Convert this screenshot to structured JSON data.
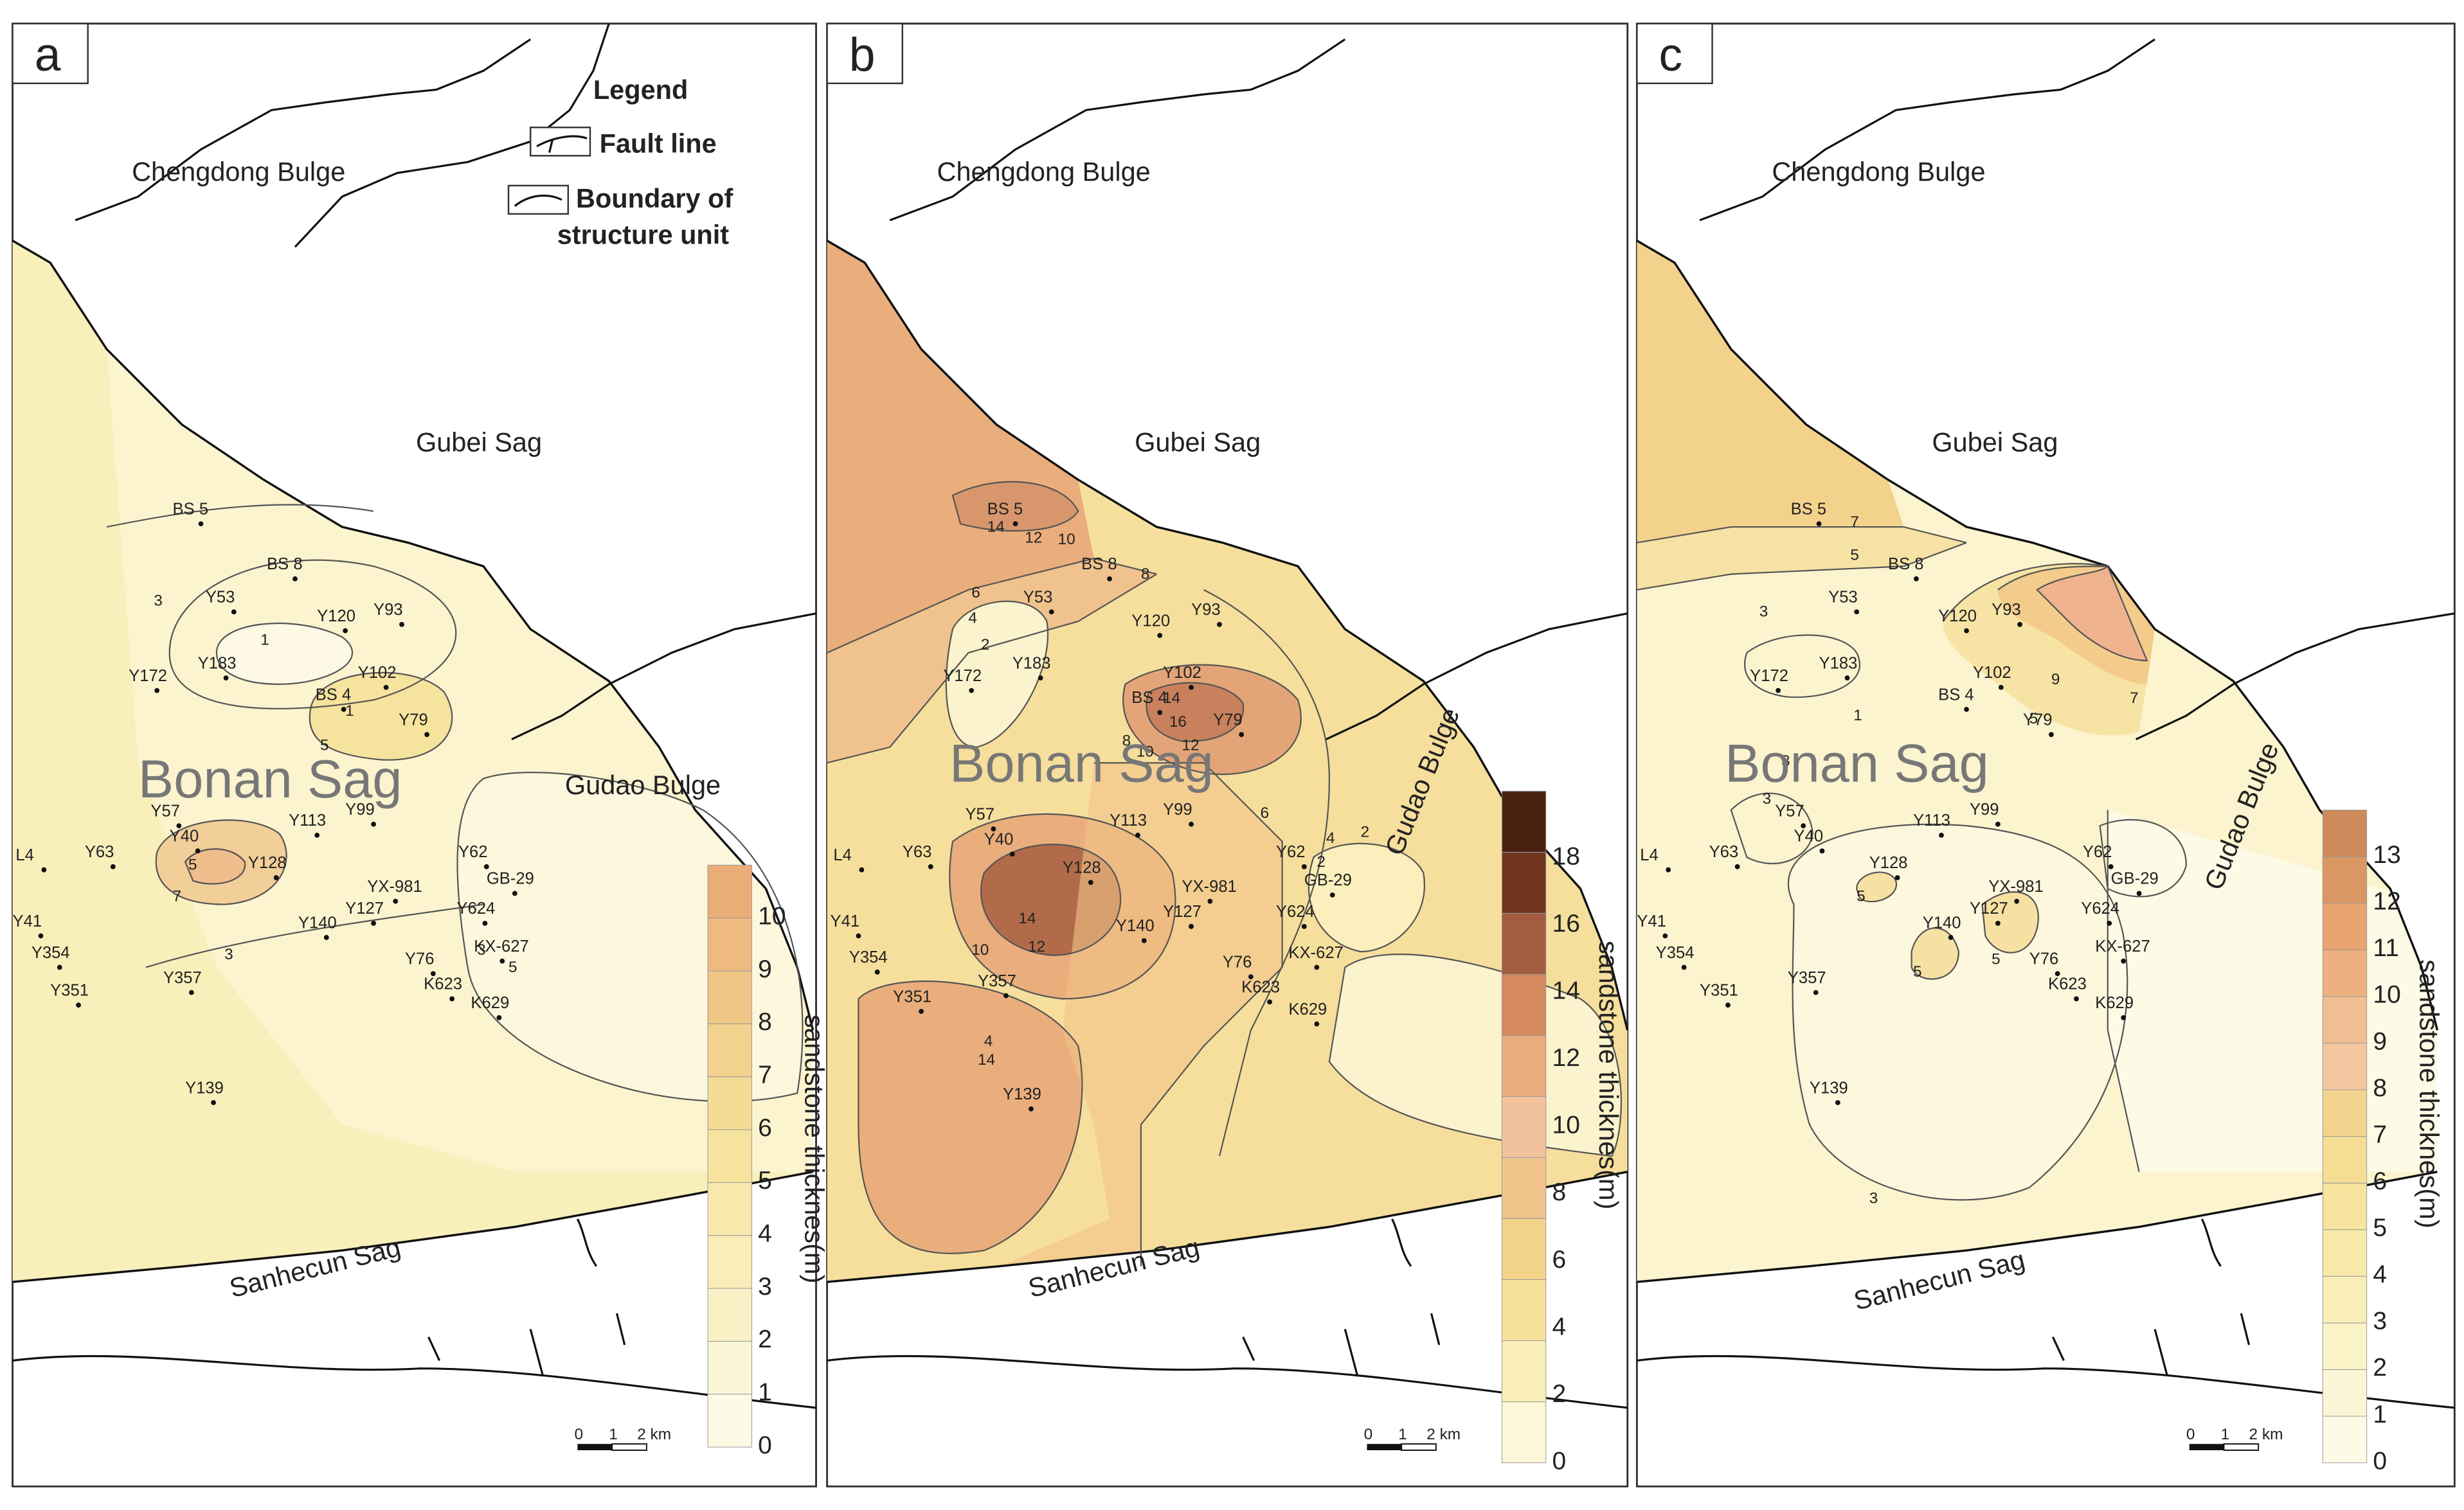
{
  "legend": {
    "title": "Legend",
    "fault": "Fault line",
    "boundary_l1": "Boundary of",
    "boundary_l2": "structure unit"
  },
  "scale": {
    "t0": "0",
    "t1": "1",
    "t2": "2 km"
  },
  "colorbar_label": "sandstone thicknes(m)",
  "regions": {
    "chengdong": "Chengdong Bulge",
    "gubei": "Gubei Sag",
    "bonan": "Bonan Sag",
    "gudao": "Gudao Bulge",
    "sanhecun": "Sanhecun Sag"
  },
  "panels": [
    {
      "letter": "a",
      "gudao_rotated": false,
      "colorbar": {
        "ticks": [
          "0",
          "1",
          "2",
          "3",
          "4",
          "5",
          "6",
          "7",
          "8",
          "9",
          "10"
        ],
        "colors": [
          "#fdfbe6",
          "#fbf7d6",
          "#faf2c6",
          "#f9edb8",
          "#f8e8ab",
          "#f6e39e",
          "#f4dc95",
          "#f2d28c",
          "#f0c686",
          "#eeba80",
          "#ebad77"
        ]
      },
      "contours": [
        "3",
        "1",
        "1",
        "5",
        "5",
        "7",
        "3",
        "5",
        "3"
      ],
      "wells": [
        "BS 5",
        "BS 8",
        "Y53",
        "Y120",
        "Y93",
        "Y172",
        "Y183",
        "Y102",
        "BS 4",
        "Y79",
        "Y57",
        "Y40",
        "L4",
        "Y63",
        "Y128",
        "Y113",
        "Y99",
        "Y62",
        "GB-29",
        "YX-981",
        "Y127",
        "Y140",
        "Y624",
        "Y41",
        "Y354",
        "Y76",
        "KX-627",
        "Y351",
        "Y357",
        "K623",
        "K629",
        "Y139"
      ]
    },
    {
      "letter": "b",
      "gudao_rotated": true,
      "colorbar": {
        "ticks": [
          "0",
          "2",
          "4",
          "6",
          "8",
          "10",
          "12",
          "14",
          "16",
          "18"
        ],
        "colors": [
          "#fbf7d8",
          "#faefb8",
          "#f7e29a",
          "#f3d28a",
          "#f0c38a",
          "#f1c29b",
          "#e8ac7d",
          "#d4895f",
          "#a35c3f",
          "#70341f",
          "#4a200f"
        ]
      },
      "contours": [
        "14",
        "12",
        "10",
        "8",
        "6",
        "4",
        "2",
        "16",
        "14",
        "12",
        "10",
        "8",
        "6",
        "4",
        "2",
        "12",
        "14",
        "10",
        "14",
        "4",
        "2"
      ],
      "wells": [
        "BS 5",
        "BS 8",
        "Y53",
        "Y120",
        "Y93",
        "Y172",
        "Y183",
        "Y102",
        "BS 4",
        "Y79",
        "Y57",
        "Y40",
        "L4",
        "Y63",
        "Y128",
        "Y113",
        "Y99",
        "Y62",
        "GB-29",
        "YX-981",
        "Y127",
        "Y140",
        "Y624",
        "Y41",
        "Y354",
        "Y76",
        "KX-627",
        "Y351",
        "Y357",
        "K623",
        "K629",
        "Y139"
      ]
    },
    {
      "letter": "c",
      "gudao_rotated": true,
      "colorbar": {
        "ticks": [
          "0",
          "1",
          "2",
          "3",
          "4",
          "5",
          "6",
          "7",
          "8",
          "9",
          "10",
          "11",
          "12",
          "13"
        ],
        "colors": [
          "#fdfbe6",
          "#fbf7d6",
          "#faf3c6",
          "#f9eeb8",
          "#f8e9aa",
          "#f7e49e",
          "#f5dd94",
          "#f3d48e",
          "#f3c8a0",
          "#f2bd93",
          "#eeb07e",
          "#e8a36e",
          "#d99763",
          "#cd8a5a"
        ]
      },
      "contours": [
        "7",
        "5",
        "3",
        "9",
        "7",
        "5",
        "3",
        "3",
        "5",
        "5",
        "5",
        "3",
        "1"
      ],
      "wells": [
        "BS 5",
        "BS 8",
        "Y53",
        "Y120",
        "Y93",
        "Y172",
        "Y183",
        "Y102",
        "BS 4",
        "Y79",
        "Y57",
        "Y40",
        "L4",
        "Y63",
        "Y128",
        "Y113",
        "Y99",
        "Y62",
        "GB-29",
        "YX-981",
        "Y127",
        "Y140",
        "Y624",
        "Y41",
        "Y354",
        "Y76",
        "KX-627",
        "Y351",
        "Y357",
        "K623",
        "K629",
        "Y139"
      ]
    }
  ]
}
